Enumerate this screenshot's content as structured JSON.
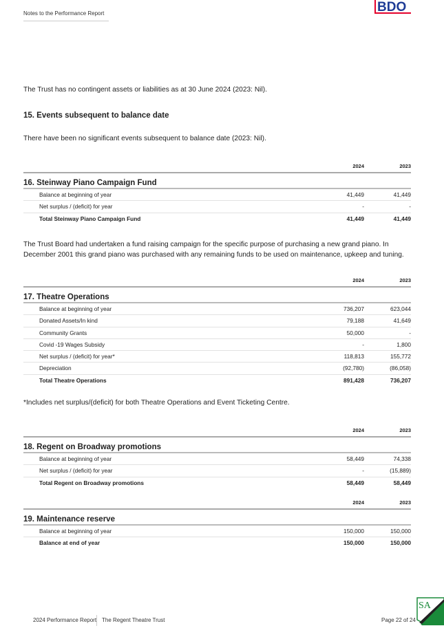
{
  "header": {
    "title": "Notes to the Performance Report",
    "logo_text": "BDO"
  },
  "contingent": "The Trust has no contingent assets or liabilities as at 30 June 2024 (2023: Nil).",
  "events": {
    "heading": "15. Events subsequent to balance date",
    "text": "There have been no significant events subsequent to balance date (2023: Nil)."
  },
  "years": [
    "2024",
    "2023"
  ],
  "t16": {
    "title": "16. Steinway Piano Campaign Fund",
    "rows": [
      {
        "label": "Balance at beginning of year",
        "v2024": "41,449",
        "v2023": "41,449"
      },
      {
        "label": "Net surplus / (deficit) for year",
        "v2024": "-",
        "v2023": "-"
      },
      {
        "label": "Total Steinway Piano Campaign Fund",
        "v2024": "41,449",
        "v2023": "41,449"
      }
    ]
  },
  "t16_note": "The Trust Board had undertaken a fund raising campaign for the specific purpose of purchasing a new grand piano. In December 2001 this grand piano was purchased with any remaining funds to be used on maintenance, upkeep and tuning.",
  "t17": {
    "title": "17. Theatre Operations",
    "rows": [
      {
        "label": "Balance at beginning of year",
        "v2024": "736,207",
        "v2023": "623,044"
      },
      {
        "label": "Donated Assets/In kind",
        "v2024": "79,188",
        "v2023": "41,649"
      },
      {
        "label": "Community Grants",
        "v2024": "50,000",
        "v2023": "-"
      },
      {
        "label": "Covid -19 Wages Subsidy",
        "v2024": "-",
        "v2023": "1,800"
      },
      {
        "label": "Net surplus / (deficit) for year*",
        "v2024": "118,813",
        "v2023": "155,772"
      },
      {
        "label": "Depreciation",
        "v2024": "(92,780)",
        "v2023": "(86,058)"
      },
      {
        "label": "Total Theatre Operations",
        "v2024": "891,428",
        "v2023": "736,207"
      }
    ]
  },
  "t17_note": "*Includes net surplus/(deficit) for both Theatre Operations and Event Ticketing Centre.",
  "t18": {
    "title": "18. Regent on Broadway promotions",
    "rows": [
      {
        "label": "Balance at beginning of year",
        "v2024": "58,449",
        "v2023": "74,338"
      },
      {
        "label": "Net surplus / (deficit) for year",
        "v2024": "-",
        "v2023": "(15,889)"
      },
      {
        "label": "Total Regent on Broadway promotions",
        "v2024": "58,449",
        "v2023": "58,449"
      }
    ]
  },
  "t19": {
    "title": "19. Maintenance reserve",
    "rows": [
      {
        "label": "Balance at beginning of year",
        "v2024": "150,000",
        "v2023": "150,000"
      },
      {
        "label": "Balance at end of year",
        "v2024": "150,000",
        "v2023": "150,000"
      }
    ]
  },
  "footer": {
    "report": "2024 Performance Report",
    "org": "The Regent Theatre Trust",
    "page": "Page 22 of 24",
    "badge_text": "SA"
  }
}
